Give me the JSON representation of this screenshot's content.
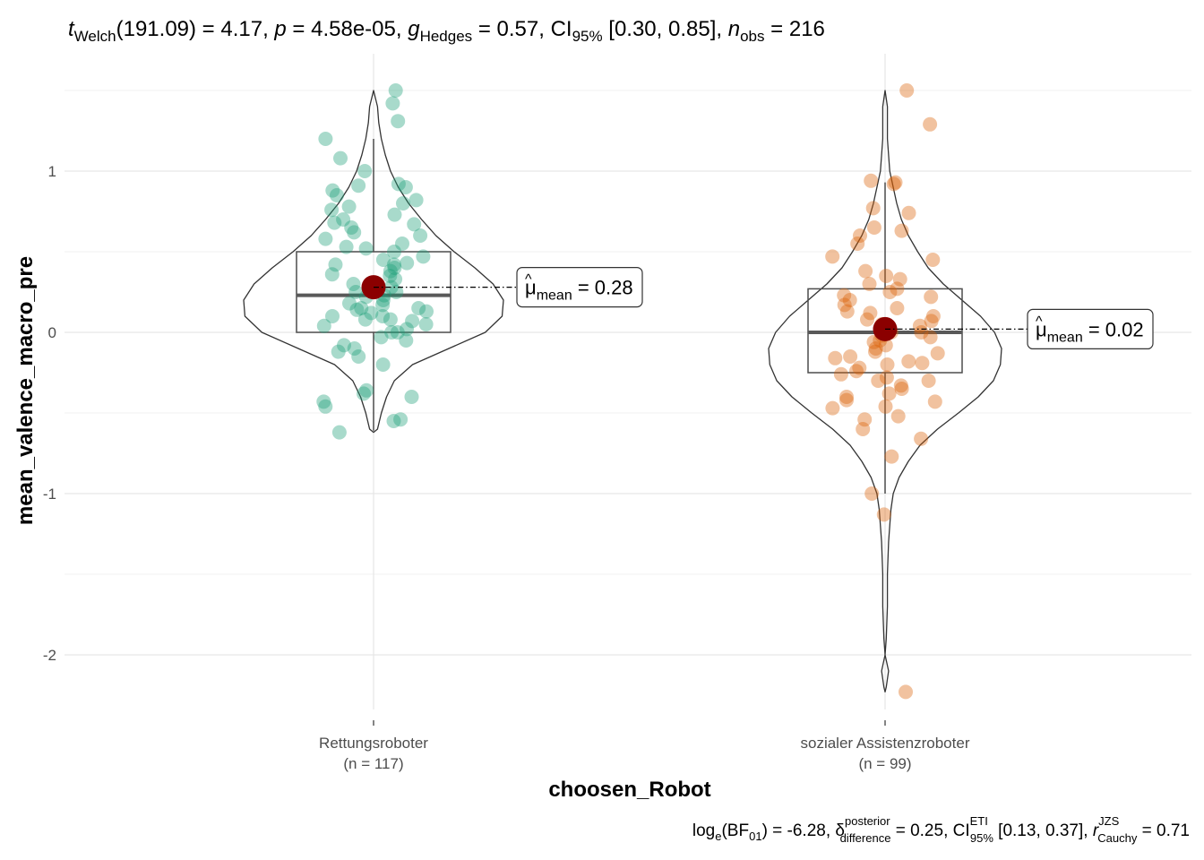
{
  "chart_data": {
    "type": "violin",
    "subtitle_parts": {
      "t": "t",
      "t_sub": "Welch",
      "t_value": "(191.09) = 4.17, ",
      "p": "p",
      "p_value": " = 4.58e-05, ",
      "g": "g",
      "g_sub": "Hedges",
      "g_value": " = 0.57, CI",
      "ci_sub": "95%",
      "ci_value": " [0.30, 0.85], ",
      "n": "n",
      "n_sub": "obs",
      "n_value": " = 216"
    },
    "caption_parts": {
      "log": "log",
      "log_sub": "e",
      "bf_open": "(BF",
      "bf_sub": "01",
      "bf_value": ") = -6.28, ",
      "delta": "δ",
      "delta_sup": "posterior",
      "delta_sub": "difference",
      "delta_value": " = 0.25, CI",
      "ci_sup": "ETI",
      "ci_sub": "95%",
      "ci_value": " [0.13, 0.37], ",
      "r": "r",
      "r_sup": "JZS",
      "r_sub": "Cauchy",
      "r_value": " = 0.71"
    },
    "xlabel": "choosen_Robot",
    "ylabel": "mean_valence_macro_pre",
    "ylim": [
      -2.4,
      1.6
    ],
    "yticks": [
      -2,
      -1,
      0,
      1
    ],
    "ytick_labels": [
      "-2",
      "-1",
      "0",
      "1"
    ],
    "grid": true,
    "mean_point_color": "#8B0000",
    "groups": [
      {
        "category": "Rettungsroboter",
        "n_label": "(n = 117)",
        "color": "#1B9E77",
        "mean": 0.28,
        "mean_label": "0.28",
        "mean_symbol": "μ",
        "mean_sub": "mean",
        "box": {
          "q1": 0.0,
          "median": 0.23,
          "q3": 0.5,
          "whisker_low": -0.61,
          "whisker_high": 1.2
        },
        "violin": {
          "y": [
            -0.62,
            -0.6,
            -0.5,
            -0.4,
            -0.3,
            -0.2,
            -0.1,
            0.0,
            0.1,
            0.2,
            0.3,
            0.4,
            0.5,
            0.6,
            0.7,
            0.8,
            0.9,
            1.0,
            1.1,
            1.2,
            1.3,
            1.4,
            1.5
          ],
          "density": [
            0.0,
            0.03,
            0.06,
            0.1,
            0.16,
            0.3,
            0.58,
            0.86,
            0.99,
            1.0,
            0.92,
            0.78,
            0.62,
            0.48,
            0.37,
            0.27,
            0.19,
            0.13,
            0.09,
            0.06,
            0.04,
            0.03,
            0.0
          ]
        },
        "points": [
          -0.62,
          -0.55,
          -0.54,
          -0.46,
          -0.43,
          -0.4,
          -0.38,
          -0.36,
          -0.2,
          -0.15,
          -0.12,
          -0.1,
          -0.08,
          -0.05,
          -0.03,
          0.0,
          0.0,
          0.02,
          0.04,
          0.05,
          0.07,
          0.08,
          0.08,
          0.1,
          0.1,
          0.12,
          0.13,
          0.14,
          0.15,
          0.15,
          0.17,
          0.18,
          0.2,
          0.22,
          0.23,
          0.25,
          0.25,
          0.27,
          0.28,
          0.3,
          0.3,
          0.33,
          0.35,
          0.36,
          0.38,
          0.4,
          0.42,
          0.42,
          0.43,
          0.45,
          0.47,
          0.5,
          0.52,
          0.53,
          0.55,
          0.58,
          0.6,
          0.62,
          0.65,
          0.67,
          0.68,
          0.7,
          0.73,
          0.76,
          0.78,
          0.8,
          0.82,
          0.85,
          0.88,
          0.9,
          0.91,
          0.92,
          1.0,
          1.08,
          1.2,
          1.31,
          1.42,
          1.5
        ]
      },
      {
        "category": "sozialer Assistenzroboter",
        "n_label": "(n = 99)",
        "color": "#D95F02",
        "mean": 0.02,
        "mean_label": "0.02",
        "mean_symbol": "μ",
        "mean_sub": "mean",
        "box": {
          "q1": -0.25,
          "median": 0.0,
          "q3": 0.27,
          "whisker_low": -1.0,
          "whisker_high": 0.93
        },
        "violin": {
          "y": [
            -2.23,
            -2.2,
            -2.1,
            -2.0,
            -1.9,
            -1.7,
            -1.5,
            -1.3,
            -1.1,
            -1.0,
            -0.9,
            -0.8,
            -0.7,
            -0.6,
            -0.5,
            -0.4,
            -0.3,
            -0.2,
            -0.1,
            0.0,
            0.1,
            0.2,
            0.3,
            0.4,
            0.5,
            0.6,
            0.7,
            0.8,
            0.9,
            1.0,
            1.1,
            1.2,
            1.3,
            1.4,
            1.5
          ],
          "density": [
            0.0,
            0.01,
            0.03,
            0.0,
            0.01,
            0.02,
            0.02,
            0.03,
            0.05,
            0.07,
            0.12,
            0.2,
            0.3,
            0.45,
            0.63,
            0.8,
            0.93,
            0.99,
            1.0,
            0.94,
            0.82,
            0.66,
            0.5,
            0.37,
            0.28,
            0.2,
            0.14,
            0.1,
            0.07,
            0.04,
            0.03,
            0.02,
            0.02,
            0.02,
            0.0
          ]
        },
        "points": [
          -2.23,
          -1.13,
          -1.0,
          -0.77,
          -0.66,
          -0.6,
          -0.54,
          -0.52,
          -0.47,
          -0.46,
          -0.43,
          -0.42,
          -0.4,
          -0.38,
          -0.35,
          -0.33,
          -0.3,
          -0.3,
          -0.28,
          -0.26,
          -0.24,
          -0.22,
          -0.2,
          -0.19,
          -0.18,
          -0.16,
          -0.15,
          -0.13,
          -0.12,
          -0.1,
          -0.08,
          -0.06,
          -0.05,
          -0.03,
          -0.02,
          0.0,
          0.0,
          0.02,
          0.04,
          0.05,
          0.07,
          0.08,
          0.1,
          0.12,
          0.13,
          0.15,
          0.17,
          0.2,
          0.22,
          0.23,
          0.25,
          0.27,
          0.3,
          0.33,
          0.35,
          0.38,
          0.45,
          0.47,
          0.55,
          0.6,
          0.63,
          0.65,
          0.74,
          0.77,
          0.92,
          0.93,
          0.94,
          1.29,
          1.5
        ]
      }
    ]
  }
}
